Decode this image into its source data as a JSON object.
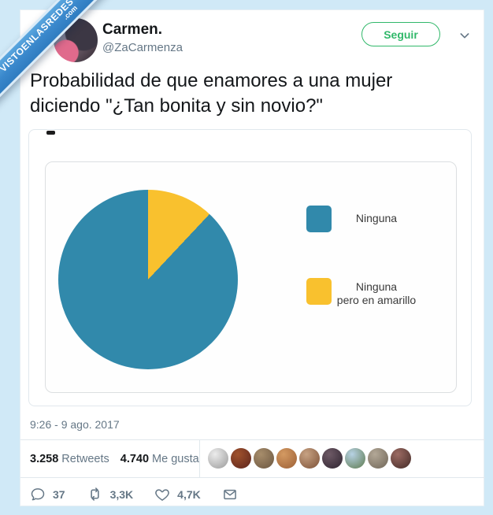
{
  "watermark": {
    "line1": "VISTOENLASREDES",
    "line2": ".com"
  },
  "header": {
    "name": "Carmen.",
    "handle": "@ZaCarmenza",
    "follow_button": "Seguir"
  },
  "tweet": {
    "text": "Probabilidad de que enamores a una mujer diciendo \"¿Tan bonita y sin novio?\""
  },
  "chart_data": {
    "type": "pie",
    "labels": [
      "Ninguna",
      "Ninguna pero en amarillo"
    ],
    "values": [
      88,
      12
    ],
    "colors": [
      "#3189ab",
      "#f9c12e"
    ],
    "legend_position": "right",
    "title": "",
    "legend": [
      {
        "line1": "Ninguna",
        "line2": ""
      },
      {
        "line1": "Ninguna",
        "line2": "pero en amarillo"
      }
    ]
  },
  "meta": {
    "timestamp": "9:26 - 9 ago. 2017"
  },
  "stats": {
    "retweets_value": "3.258",
    "retweets_label": "Retweets",
    "likes_value": "4.740",
    "likes_label": "Me gusta",
    "avatar_colors": [
      [
        "#ececec",
        "#9a9a9a"
      ],
      [
        "#a0522d",
        "#5c241c"
      ],
      [
        "#a78d6b",
        "#6b5640"
      ],
      [
        "#d49a62",
        "#9c5f35"
      ],
      [
        "#c7a283",
        "#7d5137"
      ],
      [
        "#6e5a66",
        "#2e2430"
      ],
      [
        "#b7d2e4",
        "#5d7a4e"
      ],
      [
        "#b3a897",
        "#6f6557"
      ],
      [
        "#9c6b63",
        "#432a26"
      ]
    ]
  },
  "actions": {
    "reply_count": "37",
    "retweet_count": "3,3K",
    "like_count": "4,7K"
  },
  "colors": {
    "page_background": "#d0e9f7",
    "accent_green": "#31b86a",
    "muted_gray": "#657786",
    "text_dark": "#14171a",
    "ribbon_blue": "#3a88cc"
  }
}
